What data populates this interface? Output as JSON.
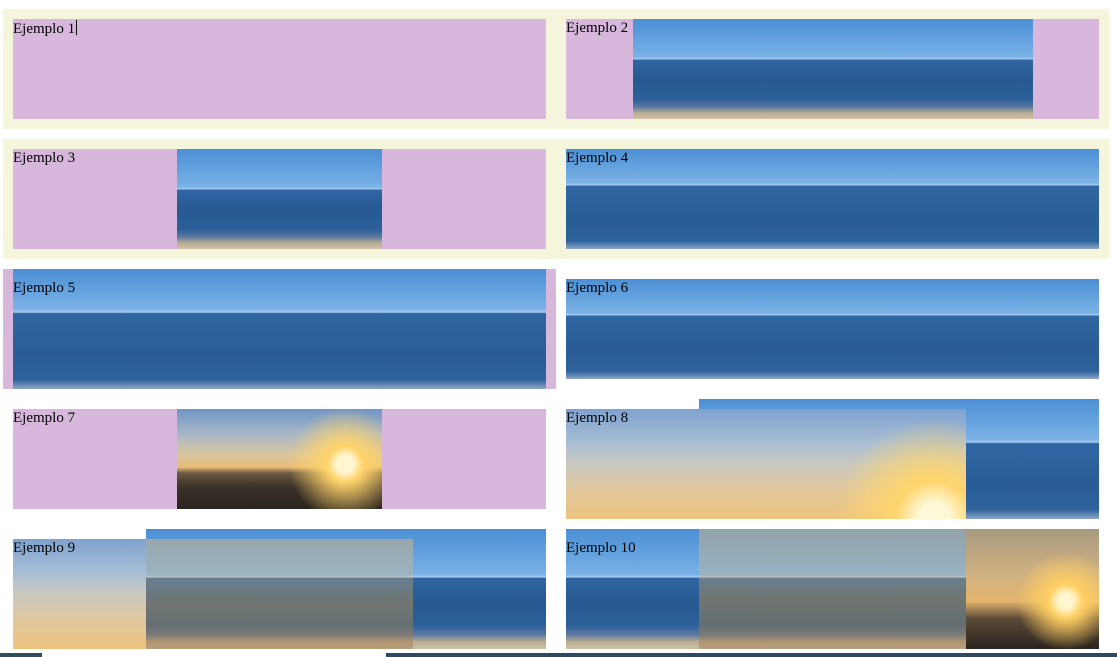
{
  "examples": [
    {
      "label": "Ejemplo 1"
    },
    {
      "label": "Ejemplo 2"
    },
    {
      "label": "Ejemplo 3"
    },
    {
      "label": "Ejemplo 4"
    },
    {
      "label": "Ejemplo 5"
    },
    {
      "label": "Ejemplo 6"
    },
    {
      "label": "Ejemplo 7"
    },
    {
      "label": "Ejemplo 8"
    },
    {
      "label": "Ejemplo 9"
    },
    {
      "label": "Ejemplo 10"
    }
  ],
  "colors": {
    "container_border": "#f5f5dc",
    "box_background": "#d8b7dd",
    "page_background": "#ffffff"
  }
}
